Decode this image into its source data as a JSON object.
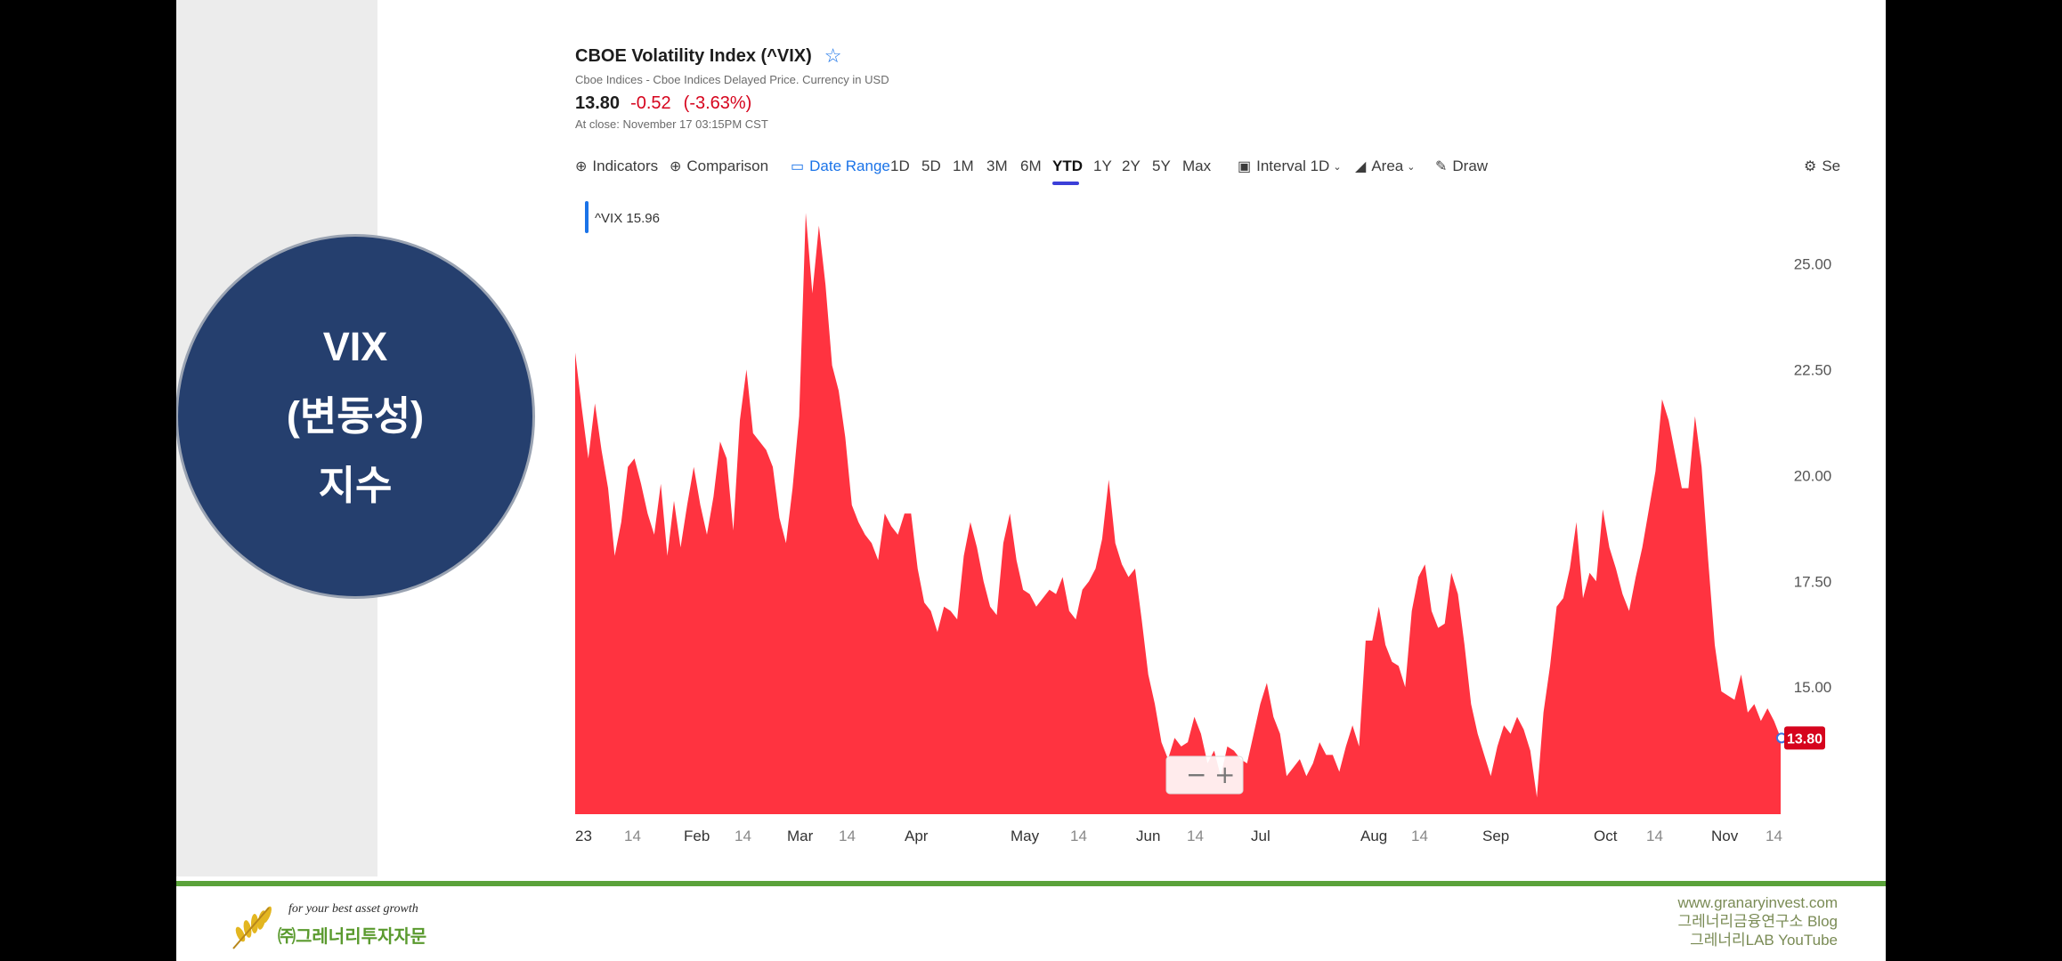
{
  "slide": {
    "circle_lines": [
      "VIX",
      "(변동성)",
      "지수"
    ]
  },
  "quote": {
    "title": "CBOE Volatility Index (^VIX)",
    "subtitle": "Cboe Indices - Cboe Indices Delayed Price. Currency in USD",
    "price": "13.80",
    "change": "-0.52",
    "change_pct": "(-3.63%)",
    "close_time": "At close: November 17 03:15PM CST",
    "star_icon": "star-outline-icon"
  },
  "toolbar": {
    "indicators": "Indicators",
    "comparison": "Comparison",
    "date_range": "Date Range",
    "ranges": [
      "1D",
      "5D",
      "1M",
      "3M",
      "6M",
      "YTD",
      "1Y",
      "2Y",
      "5Y",
      "Max"
    ],
    "selected_range": "YTD",
    "interval": "Interval 1D",
    "chart_type": "Area",
    "draw": "Draw",
    "settings": "Se"
  },
  "chart_data": {
    "type": "area",
    "legend_symbol": "^VIX",
    "legend_value": "15.96",
    "current_value_label": "13.80",
    "y_ticks": [
      "25.00",
      "22.50",
      "20.00",
      "17.50",
      "15.00"
    ],
    "y_range": [
      12.0,
      26.5
    ],
    "x_tick_labels": [
      "23",
      "14",
      "Feb",
      "14",
      "Mar",
      "14",
      "Apr",
      "May",
      "14",
      "Jun",
      "14",
      "Jul",
      "Aug",
      "14",
      "Sep",
      "Oct",
      "14",
      "Nov",
      "14"
    ],
    "series": [
      {
        "values": [
          22.9,
          21.6,
          20.4,
          21.7,
          20.6,
          19.7,
          18.1,
          18.9,
          20.2,
          20.4,
          19.8,
          19.1,
          18.6,
          19.8,
          18.1,
          19.4,
          18.3,
          19.3,
          20.2,
          19.3,
          18.6,
          19.5,
          20.8,
          20.4,
          18.7,
          21.3,
          22.5,
          21.0,
          20.8,
          20.6,
          20.2,
          19.0,
          18.4,
          19.7,
          21.4,
          26.2,
          24.3,
          25.9,
          24.5,
          22.6,
          22.0,
          20.9,
          19.3,
          18.9,
          18.6,
          18.4,
          18.0,
          19.1,
          18.8,
          18.6,
          19.1,
          19.1,
          17.8,
          17.0,
          16.8,
          16.3,
          16.9,
          16.8,
          16.6,
          18.1,
          18.9,
          18.3,
          17.5,
          16.9,
          16.7,
          18.4,
          19.1,
          18.0,
          17.3,
          17.2,
          16.9,
          17.1,
          17.3,
          17.2,
          17.6,
          16.8,
          16.6,
          17.3,
          17.5,
          17.8,
          18.5,
          19.9,
          18.4,
          17.9,
          17.6,
          17.8,
          16.6,
          15.3,
          14.6,
          13.7,
          13.3,
          13.8,
          13.6,
          13.7,
          14.3,
          13.9,
          13.2,
          13.5,
          12.9,
          13.6,
          13.5,
          13.3,
          13.2,
          13.9,
          14.6,
          15.1,
          14.3,
          13.9,
          12.9,
          13.1,
          13.3,
          12.9,
          13.2,
          13.7,
          13.4,
          13.4,
          13.0,
          13.6,
          14.1,
          13.6,
          16.1,
          16.1,
          16.9,
          16.0,
          15.6,
          15.5,
          15.0,
          16.8,
          17.6,
          17.9,
          16.8,
          16.4,
          16.5,
          17.7,
          17.2,
          16.0,
          14.6,
          13.9,
          13.4,
          12.9,
          13.6,
          14.1,
          13.9,
          14.3,
          14.0,
          13.5,
          12.4,
          14.4,
          15.5,
          16.9,
          17.1,
          17.8,
          18.9,
          17.1,
          17.7,
          17.5,
          19.2,
          18.3,
          17.8,
          17.2,
          16.8,
          17.6,
          18.3,
          19.2,
          20.1,
          21.8,
          21.3,
          20.5,
          19.7,
          19.7,
          21.4,
          20.2,
          18.0,
          16.0,
          14.9,
          14.8,
          14.7,
          15.3,
          14.4,
          14.6,
          14.2,
          14.5,
          14.2,
          13.8
        ]
      }
    ],
    "grid": false,
    "legend_position": "top-left"
  },
  "footer": {
    "tagline": "for your best asset growth",
    "company": "㈜그레너리투자자문",
    "links": [
      "www.granaryinvest.com",
      "그레너리금융연구소 Blog",
      "그레너리LAB YouTube"
    ]
  }
}
